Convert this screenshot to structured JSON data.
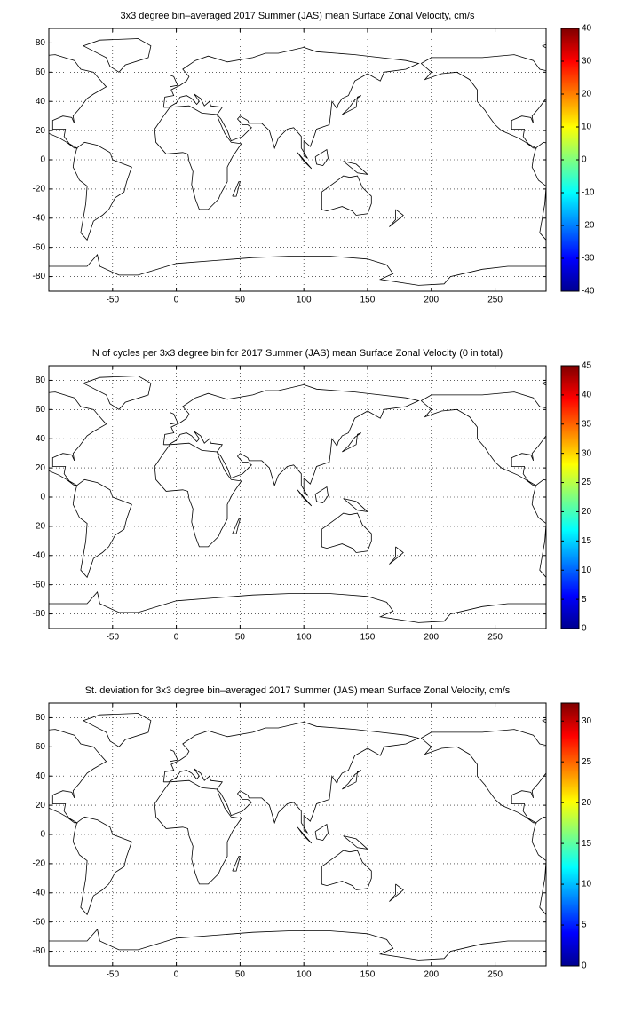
{
  "chart_data": [
    {
      "type": "map",
      "title": "3x3 degree bin–averaged 2017 Summer (JAS) mean Surface Zonal Velocity, cm/s",
      "xlim": [
        -100,
        290
      ],
      "ylim": [
        -90,
        90
      ],
      "xticks": [
        -50,
        0,
        50,
        100,
        150,
        200,
        250
      ],
      "yticks": [
        -80,
        -60,
        -40,
        -20,
        0,
        20,
        40,
        60,
        80
      ],
      "grid": true,
      "colormap": "jet",
      "clim": [
        -40,
        40
      ],
      "cticks": [
        -40,
        -30,
        -20,
        -10,
        0,
        10,
        20,
        30,
        40
      ]
    },
    {
      "type": "map",
      "title": "N of cycles per 3x3 degree bin for 2017 Summer (JAS) mean Surface Zonal Velocity (0 in total)",
      "xlim": [
        -100,
        290
      ],
      "ylim": [
        -90,
        90
      ],
      "xticks": [
        -50,
        0,
        50,
        100,
        150,
        200,
        250
      ],
      "yticks": [
        -80,
        -60,
        -40,
        -20,
        0,
        20,
        40,
        60,
        80
      ],
      "grid": true,
      "colormap": "jet",
      "clim": [
        0,
        45
      ],
      "cticks": [
        0,
        5,
        10,
        15,
        20,
        25,
        30,
        35,
        40,
        45
      ]
    },
    {
      "type": "map",
      "title": "St. deviation for 3x3 degree bin–averaged 2017 Summer (JAS) mean Surface Zonal Velocity, cm/s",
      "xlim": [
        -100,
        290
      ],
      "ylim": [
        -90,
        90
      ],
      "xticks": [
        -50,
        0,
        50,
        100,
        150,
        200,
        250
      ],
      "yticks": [
        -80,
        -60,
        -40,
        -20,
        0,
        20,
        40,
        60,
        80
      ],
      "grid": true,
      "colormap": "jet",
      "clim": [
        0,
        32.2
      ],
      "cticks": [
        0,
        5,
        10,
        15,
        20,
        25,
        30
      ]
    }
  ]
}
